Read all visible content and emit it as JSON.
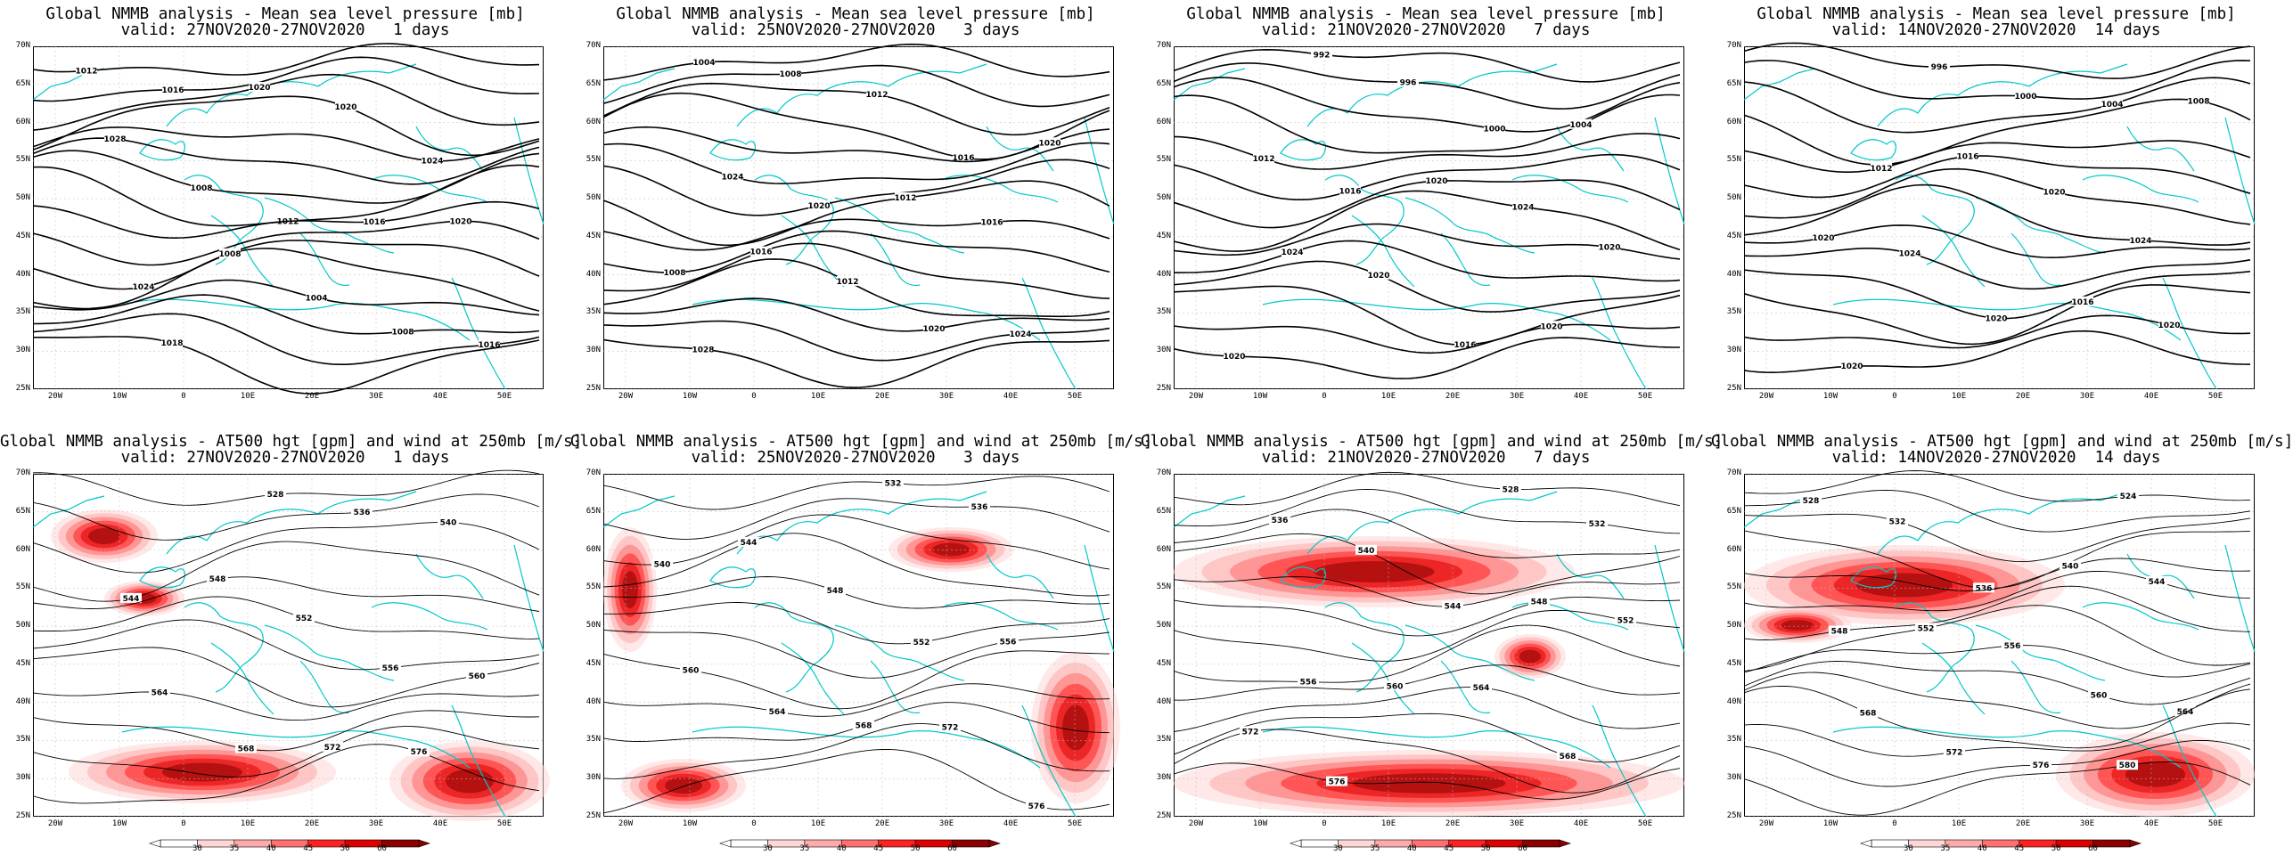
{
  "panels": [
    {
      "title": "Global NMMB analysis - Mean sea level pressure [mb]",
      "valid": "valid: 27NOV2020-27NOV2020   1 days",
      "kind": "mslp"
    },
    {
      "title": "Global NMMB analysis - Mean sea level pressure [mb]",
      "valid": "valid: 25NOV2020-27NOV2020   3 days",
      "kind": "mslp"
    },
    {
      "title": "Global NMMB analysis - Mean sea level pressure [mb]",
      "valid": "valid: 21NOV2020-27NOV2020   7 days",
      "kind": "mslp"
    },
    {
      "title": "Global NMMB analysis - Mean sea level pressure [mb]",
      "valid": "valid: 14NOV2020-27NOV2020  14 days",
      "kind": "mslp"
    },
    {
      "title": "Global NMMB analysis - AT500 hgt [gpm] and wind at 250mb [m/s]",
      "valid": "valid: 27NOV2020-27NOV2020   1 days",
      "kind": "z500"
    },
    {
      "title": "Global NMMB analysis - AT500 hgt [gpm] and wind at 250mb [m/s]",
      "valid": "valid: 25NOV2020-27NOV2020   3 days",
      "kind": "z500"
    },
    {
      "title": "Global NMMB analysis - AT500 hgt [gpm] and wind at 250mb [m/s]",
      "valid": "valid: 21NOV2020-27NOV2020   7 days",
      "kind": "z500"
    },
    {
      "title": "Global NMMB analysis - AT500 hgt [gpm] and wind at 250mb [m/s]",
      "valid": "valid: 14NOV2020-27NOV2020  14 days",
      "kind": "z500"
    }
  ],
  "axes": {
    "lat_labels": [
      "70N",
      "65N",
      "60N",
      "55N",
      "50N",
      "45N",
      "40N",
      "35N",
      "30N",
      "25N"
    ],
    "lon_labels": [
      "20W",
      "10W",
      "0",
      "10E",
      "20E",
      "30E",
      "40E",
      "50E"
    ]
  },
  "colorbar": {
    "labels": [
      "30",
      "35",
      "40",
      "45",
      "50",
      "60"
    ],
    "colors": [
      "#ffffff",
      "#ffd5d5",
      "#ffaaaa",
      "#ff7070",
      "#ff2020",
      "#dd0000",
      "#8b0000"
    ]
  },
  "contour_labels": {
    "mslp": [
      [
        "1012",
        "1016",
        "1020",
        "1020",
        "1024",
        "1028",
        "1008",
        "1012",
        "1016",
        "1020",
        "1024",
        "1008",
        "1004",
        "1008",
        "1016",
        "1018"
      ],
      [
        "1004",
        "1008",
        "1012",
        "1016",
        "1020",
        "1024",
        "1020",
        "1012",
        "1016",
        "1008",
        "1016",
        "1012",
        "1020",
        "1024",
        "1028"
      ],
      [
        "992",
        "996",
        "1000",
        "1004",
        "1012",
        "1016",
        "1020",
        "1024",
        "1020",
        "1024",
        "1020",
        "1016",
        "1020",
        "1020"
      ],
      [
        "996",
        "1000",
        "1004",
        "1008",
        "1012",
        "1016",
        "1020",
        "1024",
        "1020",
        "1024",
        "1020",
        "1016",
        "1020",
        "1020"
      ]
    ],
    "z500": [
      [
        "528",
        "536",
        "540",
        "544",
        "548",
        "552",
        "556",
        "560",
        "564",
        "568",
        "572",
        "576"
      ],
      [
        "532",
        "536",
        "540",
        "544",
        "548",
        "552",
        "556",
        "560",
        "564",
        "568",
        "572",
        "576"
      ],
      [
        "528",
        "532",
        "536",
        "540",
        "544",
        "548",
        "552",
        "556",
        "560",
        "564",
        "568",
        "572",
        "576"
      ],
      [
        "524",
        "528",
        "532",
        "536",
        "540",
        "544",
        "548",
        "552",
        "556",
        "560",
        "564",
        "568",
        "572",
        "576",
        "580"
      ]
    ]
  }
}
